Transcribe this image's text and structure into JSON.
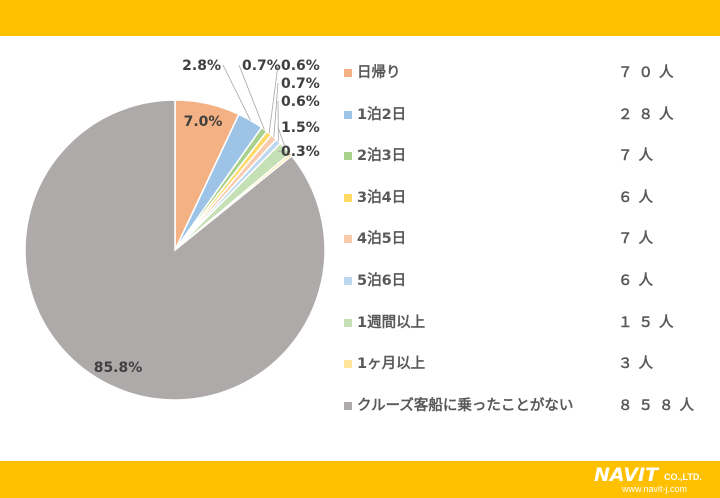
{
  "brand": {
    "band_color": "#FFC000",
    "logo_text": "NAVIT",
    "logo_suffix": "CO.,LTD.",
    "logo_url": "www.navit-j.com"
  },
  "chart_data": {
    "type": "pie",
    "title": "",
    "start_angle_deg": 0,
    "direction": "clockwise",
    "slices": [
      {
        "label": "日帰り",
        "count": "７０人",
        "percent": 7.0,
        "percent_label": "7.0%",
        "color": "#F4B183"
      },
      {
        "label": "1泊2日",
        "count": "２８人",
        "percent": 2.8,
        "percent_label": "2.8%",
        "color": "#9DC3E6"
      },
      {
        "label": "2泊3日",
        "count": "７人",
        "percent": 0.7,
        "percent_label": "0.7%",
        "color": "#A9D18E"
      },
      {
        "label": "3泊4日",
        "count": "６人",
        "percent": 0.6,
        "percent_label": "0.6%",
        "color": "#FFD966"
      },
      {
        "label": "4泊5日",
        "count": "７人",
        "percent": 0.7,
        "percent_label": "0.7%",
        "color": "#F8CBAD"
      },
      {
        "label": "5泊6日",
        "count": "６人",
        "percent": 0.6,
        "percent_label": "0.6%",
        "color": "#BDD7EE"
      },
      {
        "label": "1週間以上",
        "count": "１５人",
        "percent": 1.5,
        "percent_label": "1.5%",
        "color": "#C5E0B4"
      },
      {
        "label": "1ヶ月以上",
        "count": "３人",
        "percent": 0.3,
        "percent_label": "0.3%",
        "color": "#FFE699"
      },
      {
        "label": "クルーズ客船に乗ったことがない",
        "count": "８５８人",
        "percent": 85.8,
        "percent_label": "85.8%",
        "color": "#AEAAAA"
      }
    ],
    "legend_position": "right"
  }
}
